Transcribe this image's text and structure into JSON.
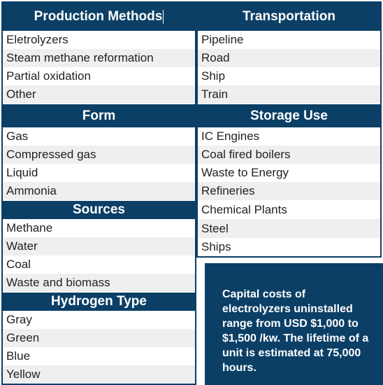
{
  "left_column": {
    "production_methods": {
      "title": "Production Methods",
      "items": [
        "Eletrolyzers",
        "Steam methane reformation",
        "Partial oxidation",
        "Other"
      ]
    },
    "form": {
      "title": "Form",
      "items": [
        "Gas",
        "Compressed gas",
        "Liquid",
        "Ammonia"
      ]
    },
    "sources": {
      "title": "Sources",
      "items": [
        "Methane",
        "Water",
        "Coal",
        "Waste and biomass"
      ]
    },
    "hydrogen_type": {
      "title": "Hydrogen Type",
      "items": [
        "Gray",
        "Green",
        "Blue",
        "Yellow"
      ]
    }
  },
  "right_column": {
    "transportation": {
      "title": "Transportation",
      "items": [
        "Pipeline",
        "Road",
        "Ship",
        "Train"
      ]
    },
    "storage_use": {
      "title": "Storage Use",
      "items": [
        "IC Engines",
        "Coal fired boilers",
        "Waste to Energy",
        "Refineries",
        "Chemical Plants",
        "Steel",
        "Ships"
      ]
    }
  },
  "callout": {
    "text": "Capital costs of electrolyzers uninstalled range from USD $1,000 to $1,500 /kw. The lifetime of a unit is estimated at 75,000 hours."
  },
  "colors": {
    "header_bg": "#0b3f66",
    "stripe": "#efefef"
  }
}
